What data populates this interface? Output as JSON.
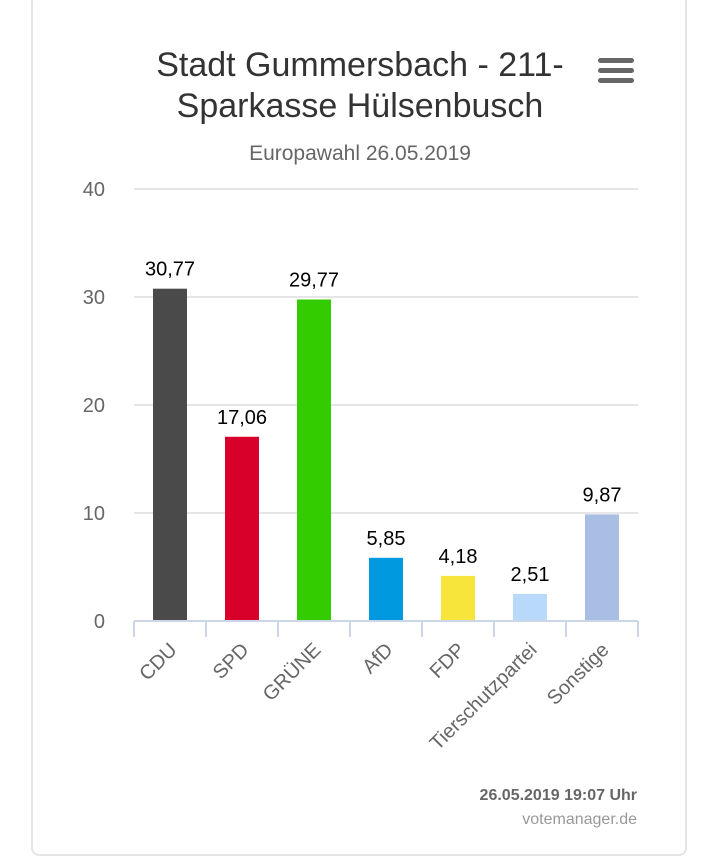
{
  "chart_data": {
    "type": "bar",
    "title_lines": [
      "Stadt Gummersbach - 211-",
      "Sparkasse Hülsenbusch"
    ],
    "subtitle": "Europawahl 26.05.2019",
    "categories": [
      "CDU",
      "SPD",
      "GRÜNE",
      "AfD",
      "FDP",
      "Tierschutzpartei",
      "Sonstige"
    ],
    "values": [
      30.77,
      17.06,
      29.77,
      5.85,
      4.18,
      2.51,
      9.87
    ],
    "data_labels": [
      "30,77",
      "17,06",
      "29,77",
      "5,85",
      "4,18",
      "2,51",
      "9,87"
    ],
    "colors": [
      "#4a4a4a",
      "#d8002a",
      "#33cc00",
      "#0099e0",
      "#f7e53b",
      "#b9d9fb",
      "#a8bee3"
    ],
    "ylim": [
      0,
      40
    ],
    "yticks": [
      0,
      10,
      20,
      30,
      40
    ],
    "grid": true,
    "legend": "none"
  },
  "credits": {
    "timestamp": "26.05.2019 19:07 Uhr",
    "source": "votemanager.de"
  },
  "icons": {
    "menu": "hamburger-menu-icon"
  }
}
